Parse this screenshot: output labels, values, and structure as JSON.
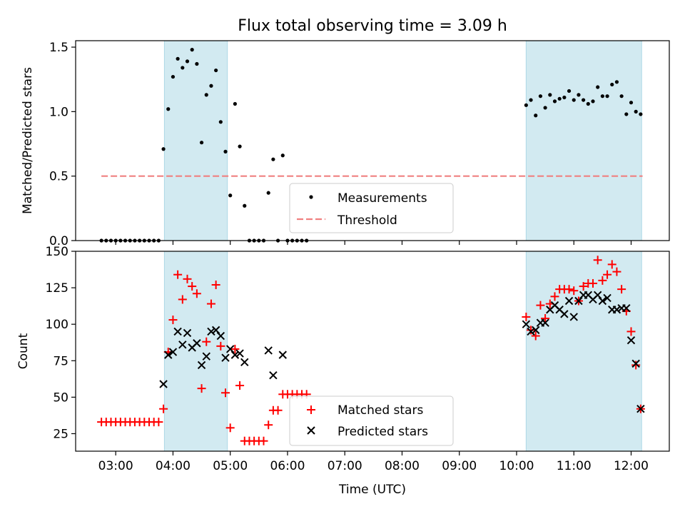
{
  "figure": {
    "title": "Flux total observing time = 3.09 h"
  },
  "colors": {
    "shade": "#add8e6",
    "threshold": "#f08080",
    "matched": "#ff0000",
    "predicted": "#000000",
    "measurement": "#000000"
  },
  "chart_data": [
    {
      "type": "scatter",
      "ylabel": "Matched/Predicted stars",
      "ylim": [
        0,
        1.55
      ],
      "yticks": [
        0.0,
        0.5,
        1.0,
        1.5
      ],
      "ytick_labels": [
        "0.0",
        "0.5",
        "1.0",
        "1.5"
      ],
      "grid": false,
      "legend_position": "lower-center",
      "shaded_spans": [
        [
          "03:51",
          "04:57"
        ],
        [
          "10:10",
          "12:11"
        ]
      ],
      "threshold": {
        "name": "Threshold",
        "y": 0.5,
        "x_range": [
          "02:45",
          "12:12"
        ]
      },
      "series": [
        {
          "name": "Measurements",
          "x": [
            "02:45",
            "02:50",
            "02:55",
            "03:00",
            "03:05",
            "03:10",
            "03:15",
            "03:20",
            "03:25",
            "03:30",
            "03:35",
            "03:40",
            "03:45",
            "03:50",
            "03:55",
            "04:00",
            "04:05",
            "04:10",
            "04:15",
            "04:20",
            "04:25",
            "04:30",
            "04:35",
            "04:40",
            "04:45",
            "04:50",
            "04:55",
            "05:00",
            "05:05",
            "05:10",
            "05:15",
            "05:20",
            "05:25",
            "05:30",
            "05:35",
            "05:40",
            "05:45",
            "05:50",
            "05:55",
            "06:00",
            "06:05",
            "06:10",
            "06:15",
            "06:20",
            "10:10",
            "10:15",
            "10:20",
            "10:25",
            "10:30",
            "10:35",
            "10:40",
            "10:45",
            "10:50",
            "10:55",
            "11:00",
            "11:05",
            "11:10",
            "11:15",
            "11:20",
            "11:25",
            "11:30",
            "11:35",
            "11:40",
            "11:45",
            "11:50",
            "11:55",
            "12:00",
            "12:05",
            "12:10"
          ],
          "y": [
            0,
            0,
            0,
            0,
            0,
            0,
            0,
            0,
            0,
            0,
            0,
            0,
            0,
            0.71,
            1.02,
            1.27,
            1.41,
            1.34,
            1.39,
            1.48,
            1.37,
            0.76,
            1.13,
            1.2,
            1.32,
            0.92,
            0.69,
            0.35,
            1.06,
            0.73,
            0.27,
            0,
            0,
            0,
            0,
            0.37,
            0.63,
            0,
            0.66,
            0,
            0,
            0,
            0,
            0,
            1.05,
            1.09,
            0.97,
            1.12,
            1.03,
            1.13,
            1.08,
            1.1,
            1.11,
            1.16,
            1.09,
            1.13,
            1.09,
            1.06,
            1.08,
            1.19,
            1.12,
            1.12,
            1.21,
            1.23,
            1.12,
            0.98,
            1.07,
            1.0,
            0.98
          ]
        }
      ]
    },
    {
      "type": "scatter",
      "ylabel": "Count",
      "xlabel": "Time (UTC)",
      "ylim": [
        13,
        150
      ],
      "yticks": [
        25,
        50,
        75,
        100,
        125,
        150
      ],
      "ytick_labels": [
        "25",
        "50",
        "75",
        "100",
        "125",
        "150"
      ],
      "xticks": [
        "03:00",
        "04:00",
        "05:00",
        "06:00",
        "07:00",
        "08:00",
        "09:00",
        "10:00",
        "11:00",
        "12:00"
      ],
      "xlim": [
        "02:18",
        "12:40"
      ],
      "grid": false,
      "legend_position": "lower-center",
      "shaded_spans": [
        [
          "03:51",
          "04:57"
        ],
        [
          "10:10",
          "12:11"
        ]
      ],
      "series": [
        {
          "name": "Matched stars",
          "marker": "plus",
          "x": [
            "02:45",
            "02:50",
            "02:55",
            "03:00",
            "03:05",
            "03:10",
            "03:15",
            "03:20",
            "03:25",
            "03:30",
            "03:35",
            "03:40",
            "03:45",
            "03:50",
            "03:55",
            "04:00",
            "04:05",
            "04:10",
            "04:15",
            "04:20",
            "04:25",
            "04:30",
            "04:35",
            "04:40",
            "04:45",
            "04:50",
            "04:55",
            "05:00",
            "05:05",
            "05:10",
            "05:15",
            "05:20",
            "05:25",
            "05:30",
            "05:35",
            "05:40",
            "05:45",
            "05:50",
            "05:55",
            "06:00",
            "06:05",
            "06:10",
            "06:15",
            "06:20",
            "10:10",
            "10:15",
            "10:20",
            "10:25",
            "10:30",
            "10:35",
            "10:40",
            "10:45",
            "10:50",
            "10:55",
            "11:00",
            "11:05",
            "11:10",
            "11:15",
            "11:20",
            "11:25",
            "11:30",
            "11:35",
            "11:40",
            "11:45",
            "11:50",
            "11:55",
            "12:00",
            "12:05",
            "12:10"
          ],
          "y": [
            33,
            33,
            33,
            33,
            33,
            33,
            33,
            33,
            33,
            33,
            33,
            33,
            33,
            42,
            81,
            103,
            134,
            117,
            131,
            126,
            121,
            56,
            88,
            114,
            127,
            85,
            53,
            29,
            83,
            58,
            20,
            20,
            20,
            20,
            20,
            31,
            41,
            41,
            52,
            52,
            52,
            52,
            52,
            52,
            105,
            96,
            92,
            113,
            104,
            114,
            119,
            124,
            124,
            124,
            123,
            116,
            126,
            128,
            128,
            144,
            130,
            134,
            141,
            136,
            124,
            109,
            95,
            72,
            42
          ]
        },
        {
          "name": "Predicted stars",
          "marker": "x",
          "x": [
            "03:50",
            "03:55",
            "04:00",
            "04:05",
            "04:10",
            "04:15",
            "04:20",
            "04:25",
            "04:30",
            "04:35",
            "04:40",
            "04:45",
            "04:50",
            "04:55",
            "05:00",
            "05:05",
            "05:10",
            "05:15",
            "05:40",
            "05:45",
            "05:55",
            "10:10",
            "10:15",
            "10:20",
            "10:25",
            "10:30",
            "10:35",
            "10:40",
            "10:45",
            "10:50",
            "10:55",
            "11:00",
            "11:05",
            "11:10",
            "11:15",
            "11:20",
            "11:25",
            "11:30",
            "11:35",
            "11:40",
            "11:45",
            "11:50",
            "11:55",
            "12:00",
            "12:05",
            "12:10"
          ],
          "y": [
            59,
            79,
            81,
            95,
            86,
            94,
            84,
            87,
            72,
            78,
            95,
            96,
            92,
            77,
            83,
            79,
            80,
            74,
            82,
            65,
            79,
            100,
            95,
            96,
            101,
            101,
            110,
            113,
            110,
            107,
            116,
            105,
            116,
            120,
            120,
            117,
            120,
            116,
            118,
            110,
            110,
            111,
            111,
            89,
            73,
            42
          ]
        }
      ]
    }
  ]
}
